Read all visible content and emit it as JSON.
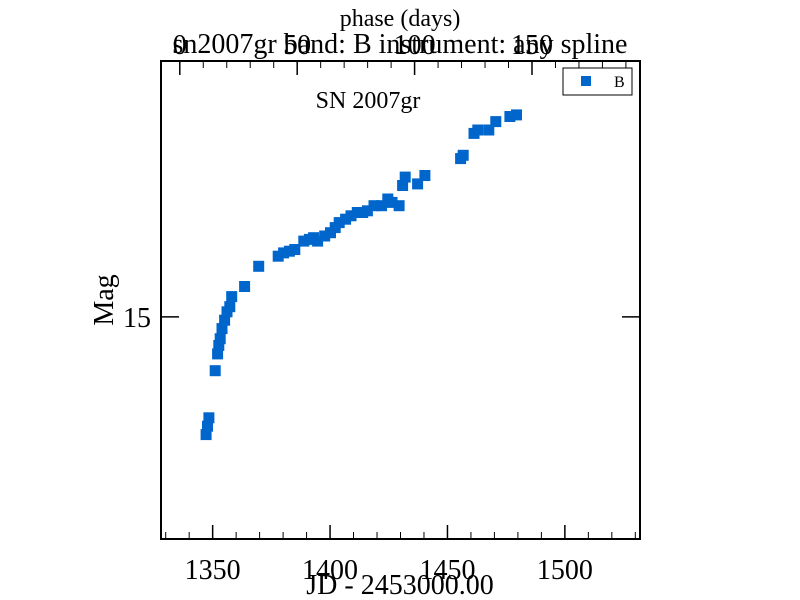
{
  "chart_data": {
    "type": "scatter",
    "title": "sn2007gr band: B instrument: any spline",
    "annotation": "SN 2007gr",
    "xlabel": "JD - 2453000.00",
    "ylabel": "Mag",
    "top_axis_label": "phase (days)",
    "xlim": [
      1328,
      1532
    ],
    "ylim": [
      16.52,
      13.68
    ],
    "y_inverted": true,
    "x_ticks": [
      1350,
      1400,
      1450,
      1500
    ],
    "x_tick_labels": [
      "1350",
      "1400",
      "1450",
      "1500"
    ],
    "top_ticks": [
      0,
      50,
      100,
      150
    ],
    "top_tick_labels": [
      "0",
      "50",
      "100",
      "150"
    ],
    "top_axis_zero_jd": 1336,
    "y_ticks": [
      15
    ],
    "y_tick_labels": [
      "15"
    ],
    "grid": false,
    "legend_position": "top-right",
    "series": [
      {
        "name": "B",
        "color": "#0066cc",
        "marker": "square",
        "x": [
          1347.2,
          1347.8,
          1348.4,
          1351.1,
          1352.1,
          1352.6,
          1353.2,
          1354.0,
          1355.1,
          1356.1,
          1357.3,
          1358.1,
          1363.6,
          1369.6,
          1377.9,
          1380.2,
          1382.7,
          1385.0,
          1388.8,
          1391.2,
          1393.0,
          1394.7,
          1397.7,
          1400.2,
          1402.2,
          1403.9,
          1406.6,
          1408.9,
          1411.6,
          1413.9,
          1415.9,
          1418.7,
          1421.9,
          1424.6,
          1426.4,
          1429.4,
          1430.9,
          1432.0,
          1437.3,
          1440.4,
          1455.6,
          1456.7,
          1461.3,
          1462.9,
          1467.6,
          1470.6,
          1476.6,
          1479.4,
          1520.4
        ],
        "y": [
          14.3,
          14.35,
          14.4,
          14.68,
          14.78,
          14.83,
          14.87,
          14.93,
          14.98,
          15.03,
          15.06,
          15.12,
          15.18,
          15.3,
          15.36,
          15.38,
          15.39,
          15.4,
          15.45,
          15.46,
          15.47,
          15.45,
          15.48,
          15.5,
          15.53,
          15.56,
          15.58,
          15.6,
          15.62,
          15.62,
          15.63,
          15.66,
          15.66,
          15.7,
          15.68,
          15.66,
          15.78,
          15.83,
          15.79,
          15.84,
          15.94,
          15.96,
          16.09,
          16.11,
          16.11,
          16.16,
          16.19,
          16.2,
          16.38
        ]
      }
    ]
  }
}
